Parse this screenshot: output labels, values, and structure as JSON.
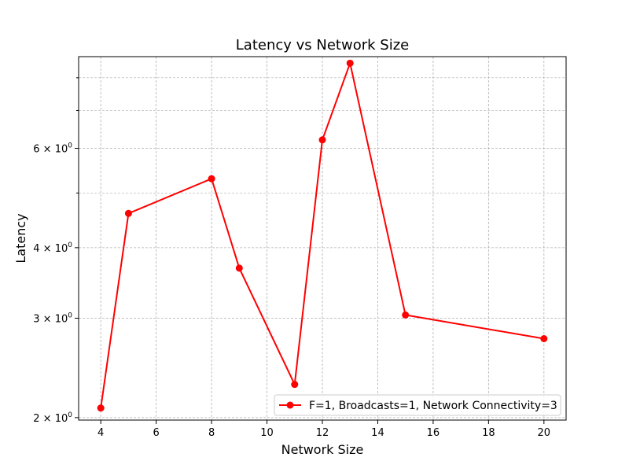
{
  "chart_data": {
    "type": "line",
    "title": "Latency vs Network Size",
    "xlabel": "Network Size",
    "ylabel": "Latency",
    "x_scale": "linear",
    "y_scale": "log",
    "xlim": [
      3.2,
      20.8
    ],
    "ylim": [
      1.98,
      8.72
    ],
    "x_ticks": [
      {
        "value": 4,
        "label": "4"
      },
      {
        "value": 6,
        "label": "6"
      },
      {
        "value": 8,
        "label": "8"
      },
      {
        "value": 10,
        "label": "10"
      },
      {
        "value": 12,
        "label": "12"
      },
      {
        "value": 14,
        "label": "14"
      },
      {
        "value": 16,
        "label": "16"
      },
      {
        "value": 18,
        "label": "18"
      },
      {
        "value": 20,
        "label": "20"
      }
    ],
    "y_major_ticks": [
      {
        "value": 2,
        "base": "2",
        "op": " × ",
        "exp_base": "10",
        "exp": "0"
      },
      {
        "value": 3,
        "base": "3",
        "op": " × ",
        "exp_base": "10",
        "exp": "0"
      },
      {
        "value": 4,
        "base": "4",
        "op": " × ",
        "exp_base": "10",
        "exp": "0"
      },
      {
        "value": 6,
        "base": "6",
        "op": " × ",
        "exp_base": "10",
        "exp": "0"
      }
    ],
    "y_minor_ticks": [
      5,
      7,
      8
    ],
    "grid": true,
    "legend_position": "lower-right",
    "series": [
      {
        "name": "F=1, Broadcasts=1, Network Connectivity=3",
        "color": "#ff0000",
        "marker": "circle",
        "x": [
          4,
          5,
          8,
          9,
          11,
          12,
          13,
          15,
          20
        ],
        "y": [
          2.08,
          4.6,
          5.3,
          3.68,
          2.29,
          6.21,
          8.49,
          3.04,
          2.76
        ]
      }
    ]
  }
}
